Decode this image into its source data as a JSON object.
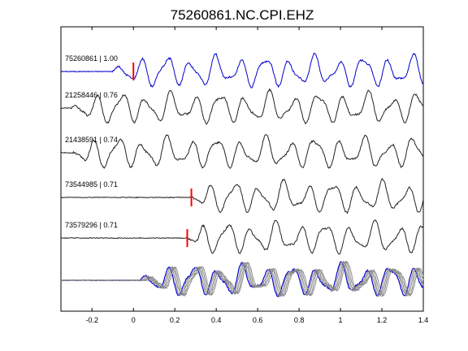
{
  "chart_data": {
    "type": "line",
    "title": "75260861.NC.CPI.EHZ",
    "xlabel": "",
    "ylabel": "",
    "xlim": [
      -0.35,
      1.4
    ],
    "x_ticks": [
      -0.2,
      0,
      0.2,
      0.4,
      0.6,
      0.8,
      1,
      1.2,
      1.4
    ],
    "x_tick_labels": [
      "-0.2",
      "0",
      "0.2",
      "0.4",
      "0.6",
      "0.8",
      "1",
      "1.2",
      "1.4"
    ],
    "grid": false,
    "colors": {
      "reference": "#0000cc",
      "trace": "#222222",
      "overlay": "#888888",
      "pick": "#ff0000",
      "axis": "#000000"
    },
    "traces": [
      {
        "label": "75260861 | 1.00",
        "color": "reference",
        "onset": -0.1,
        "pick": 0.0
      },
      {
        "label": "21258446 | 0.76",
        "color": "trace",
        "onset": -0.3,
        "pick": null
      },
      {
        "label": "21438591 | 0.74",
        "color": "trace",
        "onset": -0.3,
        "pick": null
      },
      {
        "label": "73544985 | 0.71",
        "color": "trace",
        "onset": 0.28,
        "pick": 0.28
      },
      {
        "label": "73579296 | 0.71",
        "color": "trace",
        "onset": 0.26,
        "pick": 0.26
      }
    ],
    "overlay": {
      "label": "stack",
      "onset": 0.05
    }
  }
}
